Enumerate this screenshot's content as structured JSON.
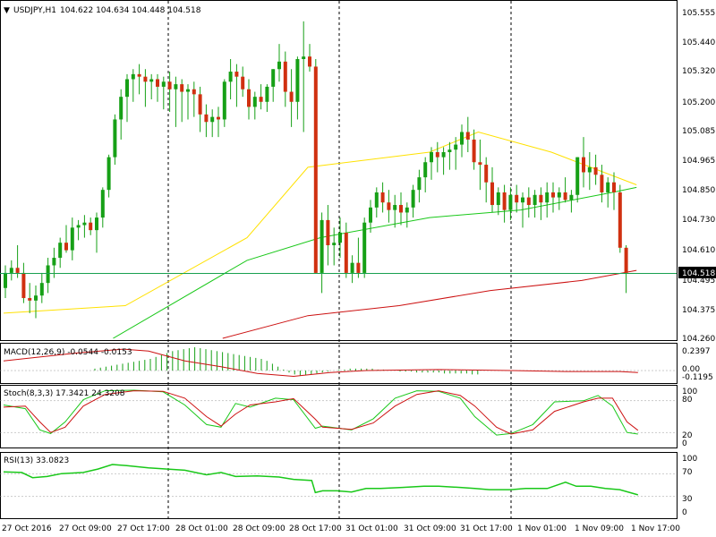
{
  "symbol_header": {
    "marker": "▼",
    "symbol": "USDJPY,H1",
    "ohlc": "104.622 104.634 104.448 104.518"
  },
  "colors": {
    "background": "#ffffff",
    "bull_candle": "#16a016",
    "bear_candle": "#d03010",
    "wick": "#16a016",
    "ma_yellow": "#ffe100",
    "ma_green": "#19c819",
    "ma_red": "#cc1111",
    "current_price_line": "#19a050",
    "price_tag_bg": "#000000",
    "price_tag_text": "#ffffff",
    "grid_separator": "#000000",
    "level_line": "#999999"
  },
  "main_panel": {
    "current_price": "104.518",
    "y_ticks": [
      "105.555",
      "105.440",
      "105.320",
      "105.200",
      "105.085",
      "104.965",
      "104.850",
      "104.730",
      "104.610",
      "104.495",
      "104.375",
      "104.260"
    ]
  },
  "macd_panel": {
    "label": "MACD(12,26,9) -0.0544 -0.0153",
    "y_ticks": [
      "0.2397",
      "0.00",
      "-0.1195"
    ]
  },
  "stoch_panel": {
    "label": "Stoch(8,3,3) 17.3421 24.3208",
    "y_ticks": [
      "100",
      "80",
      "20",
      "0"
    ]
  },
  "rsi_panel": {
    "label": "RSI(13) 33.0823",
    "y_ticks": [
      "100",
      "70",
      "30",
      "0"
    ]
  },
  "time_axis": {
    "labels": [
      "27 Oct 2016",
      "27 Oct 09:00",
      "27 Oct 17:00",
      "28 Oct 01:00",
      "28 Oct 09:00",
      "28 Oct 17:00",
      "31 Oct 01:00",
      "31 Oct 09:00",
      "31 Oct 17:00",
      "1 Nov 01:00",
      "1 Nov 09:00",
      "1 Nov 17:00"
    ]
  },
  "chart_data": {
    "type": "candlestick",
    "symbol": "USDJPY",
    "timeframe": "H1",
    "y_range": [
      104.26,
      105.6
    ],
    "candles": [
      {
        "o": 104.46,
        "h": 104.55,
        "l": 104.42,
        "c": 104.52
      },
      {
        "o": 104.52,
        "h": 104.57,
        "l": 104.49,
        "c": 104.54
      },
      {
        "o": 104.54,
        "h": 104.63,
        "l": 104.5,
        "c": 104.52
      },
      {
        "o": 104.52,
        "h": 104.56,
        "l": 104.4,
        "c": 104.42
      },
      {
        "o": 104.42,
        "h": 104.48,
        "l": 104.36,
        "c": 104.41
      },
      {
        "o": 104.41,
        "h": 104.47,
        "l": 104.34,
        "c": 104.43
      },
      {
        "o": 104.43,
        "h": 104.52,
        "l": 104.4,
        "c": 104.48
      },
      {
        "o": 104.48,
        "h": 104.58,
        "l": 104.44,
        "c": 104.55
      },
      {
        "o": 104.55,
        "h": 104.62,
        "l": 104.5,
        "c": 104.58
      },
      {
        "o": 104.58,
        "h": 104.66,
        "l": 104.54,
        "c": 104.64
      },
      {
        "o": 104.64,
        "h": 104.71,
        "l": 104.6,
        "c": 104.61
      },
      {
        "o": 104.61,
        "h": 104.74,
        "l": 104.57,
        "c": 104.7
      },
      {
        "o": 104.7,
        "h": 104.73,
        "l": 104.65,
        "c": 104.71
      },
      {
        "o": 104.71,
        "h": 104.75,
        "l": 104.66,
        "c": 104.72
      },
      {
        "o": 104.72,
        "h": 104.74,
        "l": 104.67,
        "c": 104.69
      },
      {
        "o": 104.69,
        "h": 104.76,
        "l": 104.6,
        "c": 104.74
      },
      {
        "o": 104.74,
        "h": 104.86,
        "l": 104.7,
        "c": 104.85
      },
      {
        "o": 104.85,
        "h": 104.99,
        "l": 104.82,
        "c": 104.98
      },
      {
        "o": 104.98,
        "h": 105.15,
        "l": 104.95,
        "c": 105.13
      },
      {
        "o": 105.13,
        "h": 105.25,
        "l": 105.05,
        "c": 105.22
      },
      {
        "o": 105.22,
        "h": 105.31,
        "l": 105.12,
        "c": 105.29
      },
      {
        "o": 105.29,
        "h": 105.33,
        "l": 105.2,
        "c": 105.31
      },
      {
        "o": 105.31,
        "h": 105.35,
        "l": 105.23,
        "c": 105.3
      },
      {
        "o": 105.3,
        "h": 105.33,
        "l": 105.18,
        "c": 105.28
      },
      {
        "o": 105.28,
        "h": 105.31,
        "l": 105.21,
        "c": 105.29
      },
      {
        "o": 105.29,
        "h": 105.31,
        "l": 105.2,
        "c": 105.26
      },
      {
        "o": 105.26,
        "h": 105.3,
        "l": 105.17,
        "c": 105.28
      },
      {
        "o": 105.28,
        "h": 105.32,
        "l": 105.16,
        "c": 105.25
      },
      {
        "o": 105.25,
        "h": 105.3,
        "l": 105.1,
        "c": 105.27
      },
      {
        "o": 105.27,
        "h": 105.29,
        "l": 105.12,
        "c": 105.24
      },
      {
        "o": 105.24,
        "h": 105.27,
        "l": 105.13,
        "c": 105.25
      },
      {
        "o": 105.25,
        "h": 105.28,
        "l": 105.14,
        "c": 105.23
      },
      {
        "o": 105.23,
        "h": 105.26,
        "l": 105.08,
        "c": 105.15
      },
      {
        "o": 105.15,
        "h": 105.19,
        "l": 105.06,
        "c": 105.12
      },
      {
        "o": 105.12,
        "h": 105.17,
        "l": 105.06,
        "c": 105.14
      },
      {
        "o": 105.14,
        "h": 105.18,
        "l": 105.06,
        "c": 105.13
      },
      {
        "o": 105.13,
        "h": 105.29,
        "l": 105.1,
        "c": 105.28
      },
      {
        "o": 105.28,
        "h": 105.37,
        "l": 105.21,
        "c": 105.32
      },
      {
        "o": 105.32,
        "h": 105.35,
        "l": 105.18,
        "c": 105.3
      },
      {
        "o": 105.3,
        "h": 105.34,
        "l": 105.22,
        "c": 105.25
      },
      {
        "o": 105.25,
        "h": 105.29,
        "l": 105.13,
        "c": 105.18
      },
      {
        "o": 105.18,
        "h": 105.24,
        "l": 105.13,
        "c": 105.22
      },
      {
        "o": 105.22,
        "h": 105.27,
        "l": 105.17,
        "c": 105.2
      },
      {
        "o": 105.2,
        "h": 105.27,
        "l": 105.16,
        "c": 105.26
      },
      {
        "o": 105.26,
        "h": 105.33,
        "l": 105.2,
        "c": 105.33
      },
      {
        "o": 105.33,
        "h": 105.43,
        "l": 105.28,
        "c": 105.36
      },
      {
        "o": 105.36,
        "h": 105.4,
        "l": 105.18,
        "c": 105.24
      },
      {
        "o": 105.24,
        "h": 105.33,
        "l": 105.1,
        "c": 105.2
      },
      {
        "o": 105.2,
        "h": 105.38,
        "l": 105.13,
        "c": 105.37
      },
      {
        "o": 105.37,
        "h": 105.52,
        "l": 105.08,
        "c": 105.38
      },
      {
        "o": 105.38,
        "h": 105.43,
        "l": 105.32,
        "c": 105.34
      },
      {
        "o": 105.34,
        "h": 105.37,
        "l": 104.52,
        "c": 104.52
      },
      {
        "o": 104.52,
        "h": 104.76,
        "l": 104.44,
        "c": 104.73
      },
      {
        "o": 104.73,
        "h": 104.79,
        "l": 104.55,
        "c": 104.63
      },
      {
        "o": 104.63,
        "h": 104.7,
        "l": 104.55,
        "c": 104.64
      },
      {
        "o": 104.64,
        "h": 104.74,
        "l": 104.58,
        "c": 104.68
      },
      {
        "o": 104.68,
        "h": 104.72,
        "l": 104.5,
        "c": 104.52
      },
      {
        "o": 104.52,
        "h": 104.59,
        "l": 104.48,
        "c": 104.56
      },
      {
        "o": 104.56,
        "h": 104.66,
        "l": 104.5,
        "c": 104.52
      },
      {
        "o": 104.52,
        "h": 104.74,
        "l": 104.5,
        "c": 104.72
      },
      {
        "o": 104.72,
        "h": 104.81,
        "l": 104.68,
        "c": 104.78
      },
      {
        "o": 104.78,
        "h": 104.86,
        "l": 104.74,
        "c": 104.84
      },
      {
        "o": 104.84,
        "h": 104.88,
        "l": 104.76,
        "c": 104.8
      },
      {
        "o": 104.8,
        "h": 104.85,
        "l": 104.72,
        "c": 104.77
      },
      {
        "o": 104.77,
        "h": 104.83,
        "l": 104.7,
        "c": 104.79
      },
      {
        "o": 104.79,
        "h": 104.84,
        "l": 104.71,
        "c": 104.76
      },
      {
        "o": 104.76,
        "h": 104.8,
        "l": 104.7,
        "c": 104.78
      },
      {
        "o": 104.78,
        "h": 104.87,
        "l": 104.74,
        "c": 104.85
      },
      {
        "o": 104.85,
        "h": 104.93,
        "l": 104.8,
        "c": 104.9
      },
      {
        "o": 104.9,
        "h": 104.98,
        "l": 104.84,
        "c": 104.96
      },
      {
        "o": 104.96,
        "h": 105.02,
        "l": 104.89,
        "c": 105.0
      },
      {
        "o": 105.0,
        "h": 105.04,
        "l": 104.92,
        "c": 104.98
      },
      {
        "o": 104.98,
        "h": 105.02,
        "l": 104.91,
        "c": 105.0
      },
      {
        "o": 105.0,
        "h": 105.04,
        "l": 104.93,
        "c": 105.01
      },
      {
        "o": 105.01,
        "h": 105.06,
        "l": 104.93,
        "c": 105.03
      },
      {
        "o": 105.03,
        "h": 105.11,
        "l": 104.98,
        "c": 105.08
      },
      {
        "o": 105.08,
        "h": 105.14,
        "l": 105.0,
        "c": 105.05
      },
      {
        "o": 105.05,
        "h": 105.09,
        "l": 104.93,
        "c": 104.96
      },
      {
        "o": 104.96,
        "h": 105.05,
        "l": 104.85,
        "c": 104.95
      },
      {
        "o": 104.95,
        "h": 104.98,
        "l": 104.8,
        "c": 104.88
      },
      {
        "o": 104.88,
        "h": 104.94,
        "l": 104.76,
        "c": 104.79
      },
      {
        "o": 104.79,
        "h": 104.86,
        "l": 104.75,
        "c": 104.84
      },
      {
        "o": 104.84,
        "h": 104.87,
        "l": 104.72,
        "c": 104.77
      },
      {
        "o": 104.77,
        "h": 104.86,
        "l": 104.73,
        "c": 104.83
      },
      {
        "o": 104.83,
        "h": 104.87,
        "l": 104.76,
        "c": 104.8
      },
      {
        "o": 104.8,
        "h": 104.84,
        "l": 104.7,
        "c": 104.82
      },
      {
        "o": 104.82,
        "h": 104.86,
        "l": 104.74,
        "c": 104.79
      },
      {
        "o": 104.79,
        "h": 104.85,
        "l": 104.74,
        "c": 104.83
      },
      {
        "o": 104.83,
        "h": 104.86,
        "l": 104.73,
        "c": 104.8
      },
      {
        "o": 104.8,
        "h": 104.88,
        "l": 104.74,
        "c": 104.84
      },
      {
        "o": 104.84,
        "h": 104.88,
        "l": 104.76,
        "c": 104.82
      },
      {
        "o": 104.82,
        "h": 104.86,
        "l": 104.77,
        "c": 104.84
      },
      {
        "o": 104.84,
        "h": 104.9,
        "l": 104.8,
        "c": 104.81
      },
      {
        "o": 104.81,
        "h": 104.85,
        "l": 104.76,
        "c": 104.83
      },
      {
        "o": 104.83,
        "h": 104.98,
        "l": 104.8,
        "c": 104.98
      },
      {
        "o": 104.98,
        "h": 105.06,
        "l": 104.86,
        "c": 104.92
      },
      {
        "o": 104.92,
        "h": 105.0,
        "l": 104.85,
        "c": 104.94
      },
      {
        "o": 104.94,
        "h": 104.99,
        "l": 104.87,
        "c": 104.91
      },
      {
        "o": 104.91,
        "h": 104.95,
        "l": 104.8,
        "c": 104.84
      },
      {
        "o": 104.84,
        "h": 104.9,
        "l": 104.78,
        "c": 104.88
      },
      {
        "o": 104.88,
        "h": 104.92,
        "l": 104.77,
        "c": 104.84
      },
      {
        "o": 104.84,
        "h": 104.87,
        "l": 104.6,
        "c": 104.62
      },
      {
        "o": 104.62,
        "h": 104.63,
        "l": 104.44,
        "c": 104.52
      }
    ],
    "ma_yellow": [
      [
        0,
        104.36
      ],
      [
        20,
        104.39
      ],
      [
        40,
        104.66
      ],
      [
        50,
        104.94
      ],
      [
        70,
        105.0
      ],
      [
        78,
        105.08
      ],
      [
        90,
        105.0
      ],
      [
        104,
        104.87
      ]
    ],
    "ma_green": [
      [
        18,
        104.26
      ],
      [
        40,
        104.57
      ],
      [
        52,
        104.66
      ],
      [
        70,
        104.74
      ],
      [
        85,
        104.77
      ],
      [
        100,
        104.84
      ],
      [
        104,
        104.86
      ]
    ],
    "ma_red": [
      [
        36,
        104.26
      ],
      [
        50,
        104.35
      ],
      [
        65,
        104.39
      ],
      [
        80,
        104.45
      ],
      [
        95,
        104.49
      ],
      [
        104,
        104.53
      ]
    ],
    "macd": {
      "y_range": [
        -0.1195,
        0.2397
      ],
      "histogram": [
        0.02,
        0.03,
        0.04,
        0.05,
        0.06,
        0.07,
        0.08,
        0.09,
        0.1,
        0.11,
        0.12,
        0.14,
        0.16,
        0.18,
        0.2,
        0.21,
        0.22,
        0.23,
        0.24,
        0.23,
        0.22,
        0.21,
        0.2,
        0.19,
        0.18,
        0.17,
        0.16,
        0.15,
        0.14,
        0.13,
        0.12,
        0.1,
        0.07,
        0.04,
        0.01,
        -0.02,
        -0.04,
        -0.05,
        -0.05,
        -0.04,
        -0.03,
        -0.02,
        -0.01,
        0.0,
        0.01,
        0.01,
        0.02,
        0.02,
        0.02,
        0.02,
        0.02,
        0.01,
        0.01,
        0.0,
        0.0,
        -0.01,
        -0.01,
        -0.01,
        -0.02,
        -0.02,
        -0.02,
        -0.02,
        -0.02,
        -0.03,
        -0.03,
        -0.03,
        -0.03,
        -0.03,
        -0.04,
        -0.04
      ],
      "signal": [
        [
          0,
          0.1
        ],
        [
          20,
          0.18
        ],
        [
          33,
          0.22
        ],
        [
          40,
          0.2
        ],
        [
          50,
          0.1
        ],
        [
          60,
          0.04
        ],
        [
          70,
          -0.03
        ],
        [
          80,
          -0.06
        ],
        [
          90,
          -0.02
        ],
        [
          100,
          0.0
        ],
        [
          120,
          0.01
        ],
        [
          140,
          0.0
        ],
        [
          155,
          -0.01
        ],
        [
          170,
          -0.01
        ],
        [
          175,
          -0.02
        ]
      ]
    },
    "stoch": {
      "main": [
        [
          0,
          72
        ],
        [
          6,
          65
        ],
        [
          10,
          25
        ],
        [
          13,
          18
        ],
        [
          17,
          40
        ],
        [
          22,
          82
        ],
        [
          28,
          99
        ],
        [
          36,
          100
        ],
        [
          44,
          97
        ],
        [
          50,
          72
        ],
        [
          56,
          35
        ],
        [
          60,
          30
        ],
        [
          64,
          75
        ],
        [
          68,
          68
        ],
        [
          75,
          85
        ],
        [
          80,
          82
        ],
        [
          86,
          28
        ],
        [
          88,
          32
        ],
        [
          96,
          25
        ],
        [
          102,
          46
        ],
        [
          108,
          85
        ],
        [
          114,
          99
        ],
        [
          120,
          98
        ],
        [
          126,
          85
        ],
        [
          130,
          50
        ],
        [
          136,
          15
        ],
        [
          140,
          18
        ],
        [
          146,
          35
        ],
        [
          152,
          78
        ],
        [
          160,
          80
        ],
        [
          164,
          90
        ],
        [
          168,
          70
        ],
        [
          172,
          20
        ],
        [
          175,
          17
        ]
      ],
      "signal": [
        [
          0,
          68
        ],
        [
          6,
          70
        ],
        [
          10,
          40
        ],
        [
          13,
          20
        ],
        [
          17,
          30
        ],
        [
          22,
          70
        ],
        [
          28,
          92
        ],
        [
          36,
          99
        ],
        [
          44,
          98
        ],
        [
          50,
          85
        ],
        [
          56,
          50
        ],
        [
          60,
          32
        ],
        [
          64,
          55
        ],
        [
          68,
          72
        ],
        [
          75,
          78
        ],
        [
          80,
          84
        ],
        [
          86,
          45
        ],
        [
          88,
          30
        ],
        [
          96,
          26
        ],
        [
          102,
          38
        ],
        [
          108,
          70
        ],
        [
          114,
          92
        ],
        [
          120,
          99
        ],
        [
          126,
          90
        ],
        [
          130,
          70
        ],
        [
          136,
          30
        ],
        [
          140,
          17
        ],
        [
          146,
          25
        ],
        [
          152,
          60
        ],
        [
          160,
          78
        ],
        [
          164,
          85
        ],
        [
          168,
          85
        ],
        [
          172,
          40
        ],
        [
          175,
          24
        ]
      ]
    },
    "rsi": [
      [
        0,
        73
      ],
      [
        5,
        72
      ],
      [
        8,
        63
      ],
      [
        12,
        65
      ],
      [
        16,
        70
      ],
      [
        22,
        72
      ],
      [
        26,
        78
      ],
      [
        30,
        86
      ],
      [
        34,
        84
      ],
      [
        40,
        80
      ],
      [
        50,
        76
      ],
      [
        56,
        68
      ],
      [
        60,
        72
      ],
      [
        64,
        65
      ],
      [
        70,
        66
      ],
      [
        76,
        64
      ],
      [
        80,
        60
      ],
      [
        85,
        58
      ],
      [
        86,
        37
      ],
      [
        88,
        40
      ],
      [
        92,
        40
      ],
      [
        96,
        38
      ],
      [
        100,
        44
      ],
      [
        104,
        44
      ],
      [
        110,
        46
      ],
      [
        116,
        48
      ],
      [
        120,
        48
      ],
      [
        126,
        46
      ],
      [
        130,
        44
      ],
      [
        134,
        42
      ],
      [
        140,
        42
      ],
      [
        144,
        44
      ],
      [
        150,
        44
      ],
      [
        155,
        55
      ],
      [
        158,
        48
      ],
      [
        162,
        48
      ],
      [
        166,
        44
      ],
      [
        170,
        42
      ],
      [
        175,
        33
      ]
    ]
  }
}
